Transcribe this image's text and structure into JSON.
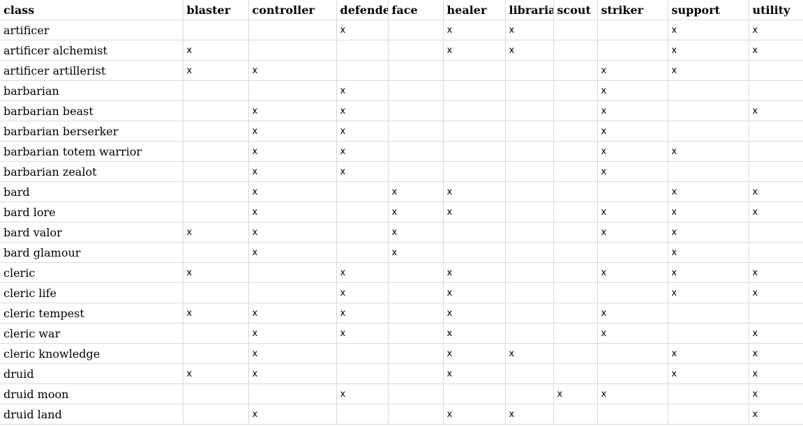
{
  "columns": [
    "class",
    "blaster",
    "controller",
    "defender",
    "face",
    "healer",
    "librarian",
    "scout",
    "striker",
    "support",
    "utility"
  ],
  "rows": [
    {
      "class": "artificer",
      "cells": [
        "",
        "",
        "x",
        "",
        "x",
        "x",
        "",
        "",
        "x",
        "x"
      ]
    },
    {
      "class": "artificer alchemist",
      "cells": [
        "x",
        "",
        "",
        "",
        "x",
        "x",
        "",
        "",
        "x",
        "x"
      ]
    },
    {
      "class": "artificer artillerist",
      "cells": [
        "x",
        "x",
        "",
        "",
        "",
        "",
        "",
        "x",
        "x",
        ""
      ]
    },
    {
      "class": "barbarian",
      "cells": [
        "",
        "",
        "x",
        "",
        "",
        "",
        "",
        "x",
        "",
        ""
      ]
    },
    {
      "class": "barbarian beast",
      "cells": [
        "",
        "x",
        "x",
        "",
        "",
        "",
        "",
        "x",
        "",
        "x"
      ]
    },
    {
      "class": "barbarian berserker",
      "cells": [
        "",
        "x",
        "x",
        "",
        "",
        "",
        "",
        "x",
        "",
        ""
      ]
    },
    {
      "class": "barbarian totem warrior",
      "cells": [
        "",
        "x",
        "x",
        "",
        "",
        "",
        "",
        "x",
        "x",
        ""
      ]
    },
    {
      "class": "barbarian zealot",
      "cells": [
        "",
        "x",
        "x",
        "",
        "",
        "",
        "",
        "x",
        "",
        ""
      ]
    },
    {
      "class": "bard",
      "cells": [
        "",
        "x",
        "",
        "x",
        "x",
        "",
        "",
        "",
        "x",
        "x"
      ]
    },
    {
      "class": "bard lore",
      "cells": [
        "",
        "x",
        "",
        "x",
        "x",
        "",
        "",
        "x",
        "x",
        "x"
      ]
    },
    {
      "class": "bard valor",
      "cells": [
        "x",
        "x",
        "",
        "x",
        "",
        "",
        "",
        "x",
        "x",
        ""
      ]
    },
    {
      "class": "bard glamour",
      "cells": [
        "",
        "x",
        "",
        "x",
        "",
        "",
        "",
        "",
        "x",
        ""
      ]
    },
    {
      "class": "cleric",
      "cells": [
        "x",
        "",
        "x",
        "",
        "x",
        "",
        "",
        "x",
        "x",
        "x"
      ]
    },
    {
      "class": "cleric life",
      "cells": [
        "",
        "",
        "x",
        "",
        "x",
        "",
        "",
        "",
        "x",
        "x"
      ]
    },
    {
      "class": "cleric tempest",
      "cells": [
        "x",
        "x",
        "x",
        "",
        "x",
        "",
        "",
        "x",
        "",
        ""
      ]
    },
    {
      "class": "cleric war",
      "cells": [
        "",
        "x",
        "x",
        "",
        "x",
        "",
        "",
        "x",
        "",
        "x"
      ]
    },
    {
      "class": "cleric knowledge",
      "cells": [
        "",
        "x",
        "",
        "",
        "x",
        "x",
        "",
        "",
        "x",
        "x"
      ]
    },
    {
      "class": "druid",
      "cells": [
        "x",
        "x",
        "",
        "",
        "x",
        "",
        "",
        "",
        "x",
        "x"
      ]
    },
    {
      "class": "druid moon",
      "cells": [
        "",
        "",
        "x",
        "",
        "",
        "",
        "x",
        "x",
        "",
        "x"
      ]
    },
    {
      "class": "druid land",
      "cells": [
        "",
        "x",
        "",
        "",
        "x",
        "x",
        "",
        "",
        "",
        "x"
      ]
    }
  ]
}
